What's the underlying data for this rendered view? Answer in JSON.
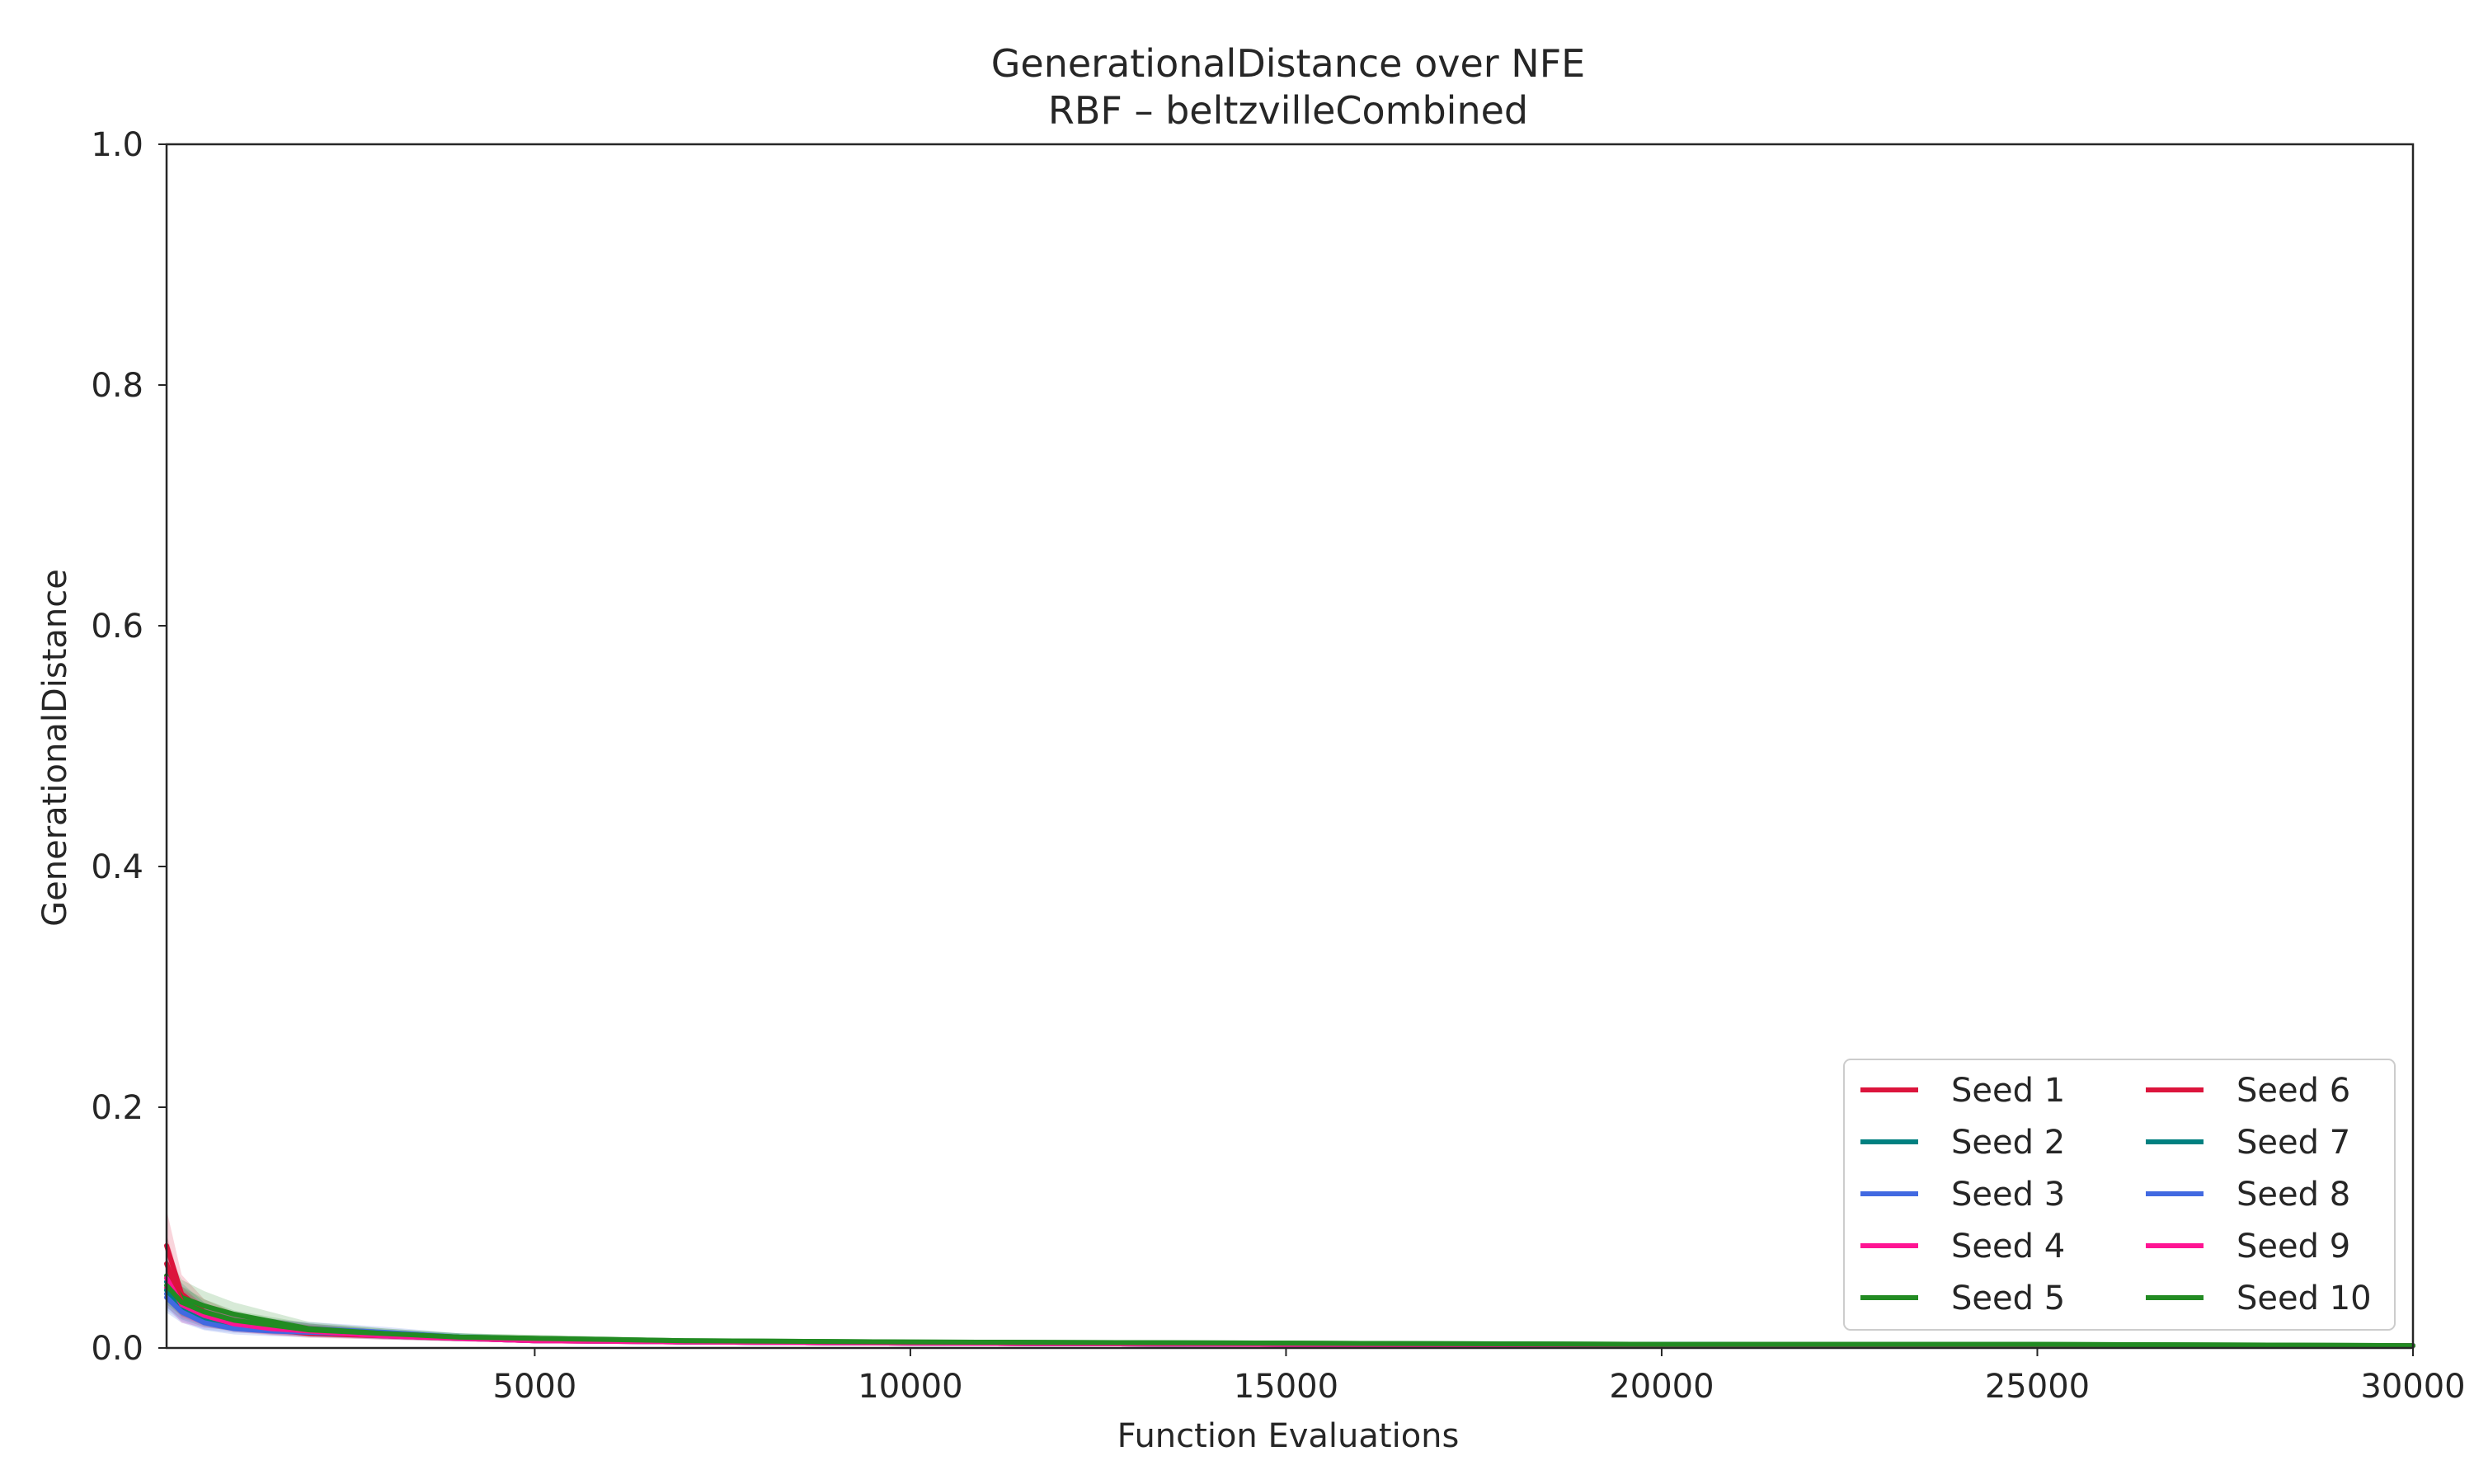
{
  "chart_data": {
    "type": "line",
    "title": "GenerationalDistance over NFE",
    "subtitle": "RBF – beltzvilleCombined",
    "xlabel": "Function Evaluations",
    "ylabel": "GenerationalDistance",
    "xlim": [
      100,
      30000
    ],
    "ylim": [
      0.0,
      1.0
    ],
    "xticks": [
      5000,
      10000,
      15000,
      20000,
      25000,
      30000
    ],
    "xtick_labels": [
      "5000",
      "10000",
      "15000",
      "20000",
      "25000",
      "30000"
    ],
    "yticks": [
      0.0,
      0.2,
      0.4,
      0.6,
      0.8,
      1.0
    ],
    "ytick_labels": [
      "0.0",
      "0.2",
      "0.4",
      "0.6",
      "0.8",
      "1.0"
    ],
    "grid": false,
    "legend_position": "lower-right",
    "legend_columns": 2,
    "x": [
      100,
      300,
      600,
      1000,
      1500,
      2000,
      3000,
      4000,
      5000,
      7000,
      10000,
      15000,
      20000,
      25000,
      30000
    ],
    "series": [
      {
        "name": "Seed 1",
        "color": "#dc143c",
        "values": [
          0.085,
          0.045,
          0.03,
          0.022,
          0.017,
          0.014,
          0.011,
          0.008,
          0.007,
          0.005,
          0.004,
          0.003,
          0.003,
          0.002,
          0.002
        ]
      },
      {
        "name": "Seed 2",
        "color": "#008080",
        "values": [
          0.055,
          0.04,
          0.028,
          0.02,
          0.016,
          0.013,
          0.01,
          0.008,
          0.007,
          0.005,
          0.004,
          0.003,
          0.003,
          0.002,
          0.002
        ]
      },
      {
        "name": "Seed 3",
        "color": "#4169e1",
        "values": [
          0.045,
          0.032,
          0.022,
          0.018,
          0.017,
          0.016,
          0.013,
          0.009,
          0.007,
          0.005,
          0.004,
          0.003,
          0.003,
          0.002,
          0.002
        ]
      },
      {
        "name": "Seed 4",
        "color": "#ff1493",
        "values": [
          0.05,
          0.03,
          0.024,
          0.021,
          0.018,
          0.015,
          0.011,
          0.008,
          0.006,
          0.005,
          0.004,
          0.003,
          0.002,
          0.002,
          0.002
        ]
      },
      {
        "name": "Seed 5",
        "color": "#228b22",
        "values": [
          0.06,
          0.042,
          0.035,
          0.028,
          0.022,
          0.016,
          0.012,
          0.009,
          0.008,
          0.006,
          0.005,
          0.004,
          0.003,
          0.003,
          0.002
        ]
      },
      {
        "name": "Seed 6",
        "color": "#dc143c",
        "values": [
          0.07,
          0.038,
          0.026,
          0.019,
          0.015,
          0.012,
          0.01,
          0.008,
          0.006,
          0.005,
          0.004,
          0.003,
          0.002,
          0.002,
          0.002
        ]
      },
      {
        "name": "Seed 7",
        "color": "#008080",
        "values": [
          0.048,
          0.034,
          0.025,
          0.02,
          0.018,
          0.015,
          0.011,
          0.009,
          0.007,
          0.005,
          0.004,
          0.003,
          0.003,
          0.002,
          0.002
        ]
      },
      {
        "name": "Seed 8",
        "color": "#4169e1",
        "values": [
          0.042,
          0.03,
          0.021,
          0.016,
          0.014,
          0.013,
          0.011,
          0.008,
          0.006,
          0.005,
          0.004,
          0.003,
          0.002,
          0.002,
          0.002
        ]
      },
      {
        "name": "Seed 9",
        "color": "#ff1493",
        "values": [
          0.058,
          0.036,
          0.027,
          0.02,
          0.016,
          0.014,
          0.01,
          0.008,
          0.006,
          0.005,
          0.004,
          0.003,
          0.002,
          0.002,
          0.002
        ]
      },
      {
        "name": "Seed 10",
        "color": "#228b22",
        "values": [
          0.052,
          0.038,
          0.03,
          0.023,
          0.019,
          0.015,
          0.012,
          0.009,
          0.008,
          0.006,
          0.005,
          0.004,
          0.003,
          0.003,
          0.002
        ]
      }
    ]
  }
}
